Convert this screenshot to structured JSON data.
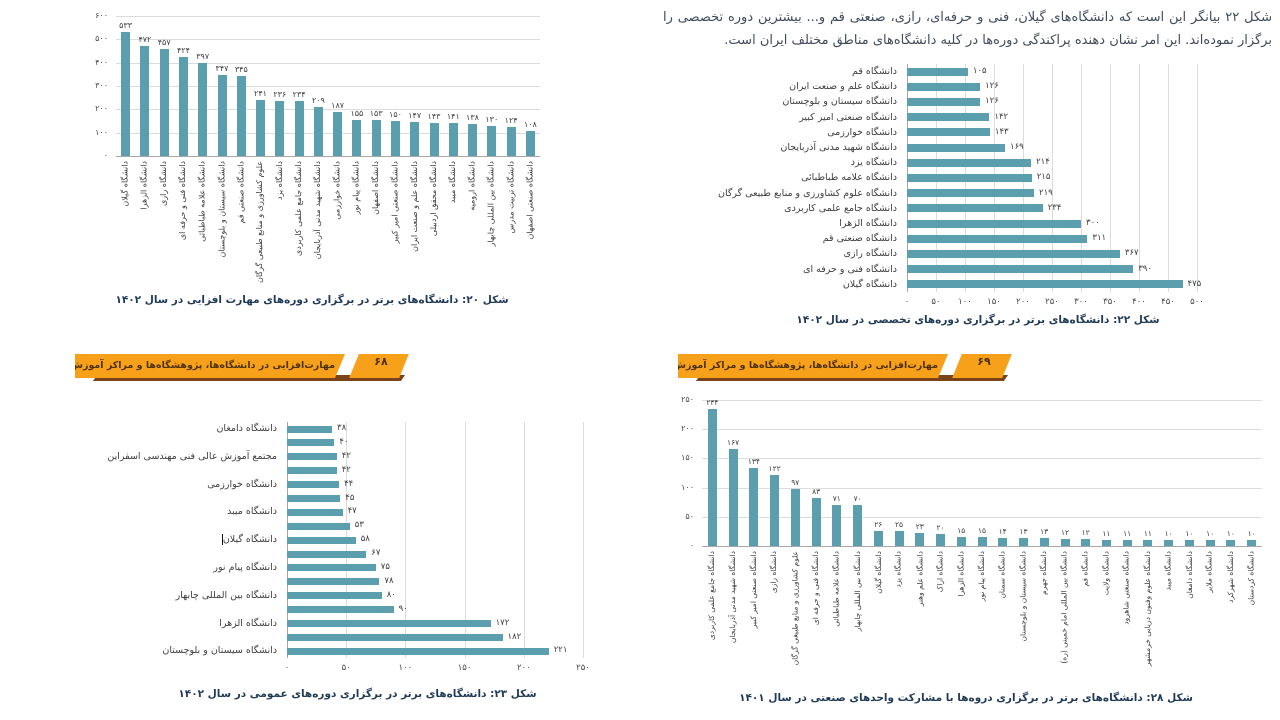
{
  "colors": {
    "bar_teal": "#5b9fae",
    "gridline": "#dcdcdc",
    "banner_orange": "#f7a11a",
    "banner_shadow": "#7b4418",
    "banner_text": "#4f3209",
    "caption_text": "#1f3a57",
    "body_text": "#3f4b59"
  },
  "paragraph": {
    "text": "شکل ۲۲ بیانگر این است که دانشگاه‌های گیلان، فنی و حرفه‌ای، رازی، صنعتی قم و... بیشترین دوره تخصصی را برگزار نموده‌اند. این امر نشان دهنده پراکندگی دوره‌ها در کلیه دانشگاه‌های مناطق مختلف ایران است."
  },
  "banners": [
    {
      "text": "مهارت‌افزایی در دانشگاه‌ها، پژوهشگاه‌ها و مراکز آموزش عالی کشور",
      "page_number": "۶۸"
    },
    {
      "text": "مهارت‌افزایی در دانشگاه‌ها، پژوهشگاه‌ها و مراکز آموزش عالی کشور",
      "page_number": "۶۹"
    }
  ],
  "chart_data": [
    {
      "id": "fig20",
      "type": "bar",
      "orientation": "vertical",
      "title": "شکل ۲۰: دانشگاه‌های برتر در برگزاری دوره‌های مهارت افزایی در سال ۱۴۰۲",
      "grid": true,
      "legend": "none",
      "ylim": [
        0,
        600
      ],
      "y_ticks": [
        "۶۰۰",
        "۵۰۰",
        "۴۰۰",
        "۳۰۰",
        "۲۰۰",
        "۱۰۰",
        "۰"
      ],
      "categories": [
        "دانشگاه گیلان",
        "دانشگاه الزهرا",
        "دانشگاه رازی",
        "دانشگاه فنی و حرفه ای",
        "دانشگاه علامه طباطبائی",
        "دانشگاه سیستان و بلوچستان",
        "دانشگاه صنعتی قم",
        "علوم کشاورزی و منابع طبیعی گرگان",
        "دانشگاه یزد",
        "دانشگاه جامع علمی کاربردی",
        "دانشگاه شهید مدنی آذربایجان",
        "دانشگاه خوارزمی",
        "دانشگاه پیام نور",
        "دانشگاه اصفهان",
        "دانشگاه صنعتی امیر کبیر",
        "دانشگاه علم و صنعت ایران",
        "دانشگاه محقق اردبیلی",
        "دانشگاه میبد",
        "دانشگاه ارومیه",
        "دانشگاه بین المللی چابهار",
        "دانشگاه تربیت مدرس",
        "دانشگاه صنعتی اصفهان"
      ],
      "values": [
        533,
        472,
        457,
        424,
        397,
        347,
        345,
        241,
        236,
        234,
        209,
        187,
        155,
        153,
        150,
        147,
        143,
        141,
        138,
        130,
        124,
        108
      ],
      "value_labels": [
        "۵۳۳",
        "۴۷۲",
        "۴۵۷",
        "۴۲۴",
        "۳۹۷",
        "۳۴۷",
        "۳۴۵",
        "۲۴۱",
        "۲۳۶",
        "۲۳۴",
        "۲۰۹",
        "۱۸۷",
        "۱۵۵",
        "۱۵۳",
        "۱۵۰",
        "۱۴۷",
        "۱۴۳",
        "۱۴۱",
        "۱۳۸",
        "۱۳۰",
        "۱۲۴",
        "۱۰۸"
      ]
    },
    {
      "id": "fig22",
      "type": "bar",
      "orientation": "horizontal",
      "title": "شکل ۲۲: دانشگاه‌های برتر در برگزاری دوره‌های تخصصی در سال ۱۴۰۲",
      "grid": true,
      "legend": "none",
      "xlim": [
        0,
        500
      ],
      "x_ticks": [
        "۰",
        "۵۰",
        "۱۰۰",
        "۱۵۰",
        "۲۰۰",
        "۲۵۰",
        "۳۰۰",
        "۳۵۰",
        "۴۰۰",
        "۴۵۰",
        "۵۰۰"
      ],
      "categories": [
        "دانشگاه قم",
        "دانشگاه علم و صنعت ایران",
        "دانشگاه سیستان و بلوچستان",
        "دانشگاه صنعتی امیر کبیر",
        "دانشگاه خوارزمی",
        "دانشگاه شهید مدنی آذربایجان",
        "دانشگاه یزد",
        "دانشگاه علامه طباطبائی",
        "دانشگاه علوم کشاورزی و منابع طبیعی گرگان",
        "دانشگاه جامع علمی کاربردی",
        "دانشگاه الزهرا",
        "دانشگاه صنعتی قم",
        "دانشگاه رازی",
        "دانشگاه فنی و حرفه ای",
        "دانشگاه گیلان"
      ],
      "values": [
        105,
        126,
        126,
        142,
        143,
        169,
        214,
        215,
        219,
        234,
        300,
        311,
        367,
        390,
        475
      ],
      "value_labels": [
        "۱۰۵",
        "۱۲۶",
        "۱۲۶",
        "۱۴۲",
        "۱۴۳",
        "۱۶۹",
        "۲۱۴",
        "۲۱۵",
        "۲۱۹",
        "۲۳۴",
        "۳۰۰",
        "۳۱۱",
        "۳۶۷",
        "۳۹۰",
        "۴۷۵"
      ]
    },
    {
      "id": "fig23",
      "type": "bar",
      "orientation": "horizontal",
      "title": "شکل ۲۳: دانشگاه‌های برتر در برگزاری دوره‌های عمومی در سال ۱۴۰۲",
      "grid": true,
      "legend": "none",
      "xlim": [
        0,
        250
      ],
      "x_ticks": [
        "۰",
        "۵۰",
        "۱۰۰",
        "۱۵۰",
        "۲۰۰",
        "۲۵۰"
      ],
      "cursor_row": 8,
      "categories": [
        "دانشگاه دامغان",
        "",
        "مجتمع آموزش عالی فنی مهندسی اسفراین",
        "",
        "دانشگاه خوارزمی",
        "",
        "دانشگاه میبد",
        "",
        "دانشگاه گیلان",
        "",
        "دانشگاه پیام نور",
        "",
        "دانشگاه بین المللی چابهار",
        "",
        "دانشگاه الزهرا",
        "",
        "دانشگاه سیستان و بلوچستان"
      ],
      "values": [
        38,
        40,
        42,
        42,
        44,
        45,
        47,
        53,
        58,
        67,
        75,
        78,
        80,
        90,
        172,
        182,
        221
      ],
      "value_labels": [
        "۳۸",
        "۴۰",
        "۴۲",
        "۴۲",
        "۴۴",
        "۴۵",
        "۴۷",
        "۵۳",
        "۵۸",
        "۶۷",
        "۷۵",
        "۷۸",
        "۸۰",
        "۹۰",
        "۱۷۲",
        "۱۸۲",
        "۲۲۱"
      ]
    },
    {
      "id": "fig28",
      "type": "bar",
      "orientation": "vertical",
      "title": "شکل ۲۸: دانشگاه‌های برتر در برگزاری دروه‌ها با مشارکت واحدهای صنعتی در سال ۱۴۰۱",
      "grid": true,
      "legend": "none",
      "ylim": [
        0,
        250
      ],
      "y_ticks": [
        "۲۵۰",
        "۲۰۰",
        "۱۵۰",
        "۱۰۰",
        "۵۰",
        "۰"
      ],
      "categories": [
        "دانشگاه جامع علمی کاربردی",
        "دانشگاه شهید مدنی آذربایجان",
        "دانشگاه صنعتی امیر کبیر",
        "دانشگاه رازی",
        "علوم کشاورزی و منابع طبیعی گرگان",
        "دانشگاه فنی و حرفه ای",
        "دانشگاه علامه طباطبائی",
        "دانشگاه بین المللی چابهار",
        "دانشگاه گیلان",
        "دانشگاه یزد",
        "دانشگاه علم وهنر",
        "دانشگاه اراک",
        "دانشگاه الزهرا",
        "دانشگاه پیام نور",
        "دانشگاه سمنان",
        "دانشگاه سیستان و بلوچستان",
        "دانشگاه جهرم",
        "دانشگاه بین المللی امام خمینی (ره)",
        "دانشگاه قم",
        "دانشگاه ولایت",
        "دانشگاه صنعتی شاهرود",
        "دانشگاه علوم وفنون دریایی خرمشهر",
        "دانشگاه میبد",
        "دانشگاه دامغان",
        "دانشگاه ملایر",
        "دانشگاه شهرکرد",
        "دانشگاه کردستان"
      ],
      "values": [
        234,
        167,
        134,
        122,
        97,
        83,
        71,
        70,
        26,
        25,
        23,
        20,
        15,
        15,
        14,
        13,
        13,
        12,
        12,
        11,
        11,
        11,
        10,
        10,
        10,
        10,
        10
      ],
      "value_labels": [
        "۲۳۴",
        "۱۶۷",
        "۱۳۴",
        "۱۲۲",
        "۹۷",
        "۸۳",
        "۷۱",
        "۷۰",
        "۲۶",
        "۲۵",
        "۲۳",
        "۲۰",
        "۱۵",
        "۱۵",
        "۱۴",
        "۱۳",
        "۱۳",
        "۱۲",
        "۱۲",
        "۱۱",
        "۱۱",
        "۱۱",
        "۱۰",
        "۱۰",
        "۱۰",
        "۱۰",
        "۱۰"
      ]
    }
  ]
}
